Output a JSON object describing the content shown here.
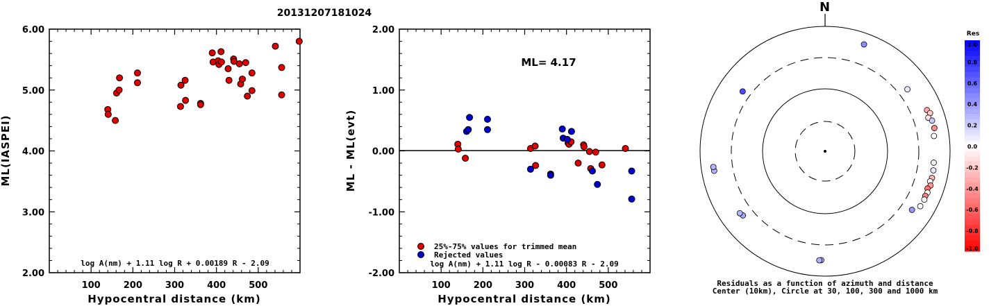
{
  "figure": {
    "title": "20131207181024"
  },
  "chart_data": [
    {
      "type": "scatter",
      "ylabel": "ML(IASPEI)",
      "xlabel": "Hypocentral distance (km)",
      "xlim": [
        0,
        600
      ],
      "ylim": [
        2.0,
        6.0
      ],
      "xticks": [
        "100",
        "200",
        "300",
        "400",
        "500"
      ],
      "yticks": [
        "2.00",
        "3.00",
        "4.00",
        "5.00",
        "6.00"
      ],
      "annotation": "log A(nm) + 1.11 log R + 0.00189 R - 2.09",
      "series": [
        {
          "color": "#dd0000",
          "points": [
            [
              140,
              4.68
            ],
            [
              141,
              4.6
            ],
            [
              158,
              4.5
            ],
            [
              161,
              4.95
            ],
            [
              167,
              5.0
            ],
            [
              168,
              5.2
            ],
            [
              211,
              5.28
            ],
            [
              211,
              5.12
            ],
            [
              315,
              5.08
            ],
            [
              314,
              4.73
            ],
            [
              325,
              5.16
            ],
            [
              326,
              4.83
            ],
            [
              362,
              4.78
            ],
            [
              362,
              4.76
            ],
            [
              390,
              5.61
            ],
            [
              392,
              5.46
            ],
            [
              404,
              5.48
            ],
            [
              406,
              5.42
            ],
            [
              411,
              5.63
            ],
            [
              412,
              5.46
            ],
            [
              428,
              5.35
            ],
            [
              430,
              5.16
            ],
            [
              441,
              5.51
            ],
            [
              442,
              5.47
            ],
            [
              455,
              5.43
            ],
            [
              458,
              5.1
            ],
            [
              462,
              5.18
            ],
            [
              470,
              5.45
            ],
            [
              474,
              4.9
            ],
            [
              485,
              5.28
            ],
            [
              485,
              4.99
            ],
            [
              541,
              5.72
            ],
            [
              556,
              5.37
            ],
            [
              556,
              4.92
            ],
            [
              598,
              5.8
            ]
          ]
        }
      ]
    },
    {
      "type": "scatter",
      "ylabel": "ML - ML(evt)",
      "xlabel": "Hypocentral distance (km)",
      "xlim": [
        0,
        600
      ],
      "ylim": [
        -2.0,
        2.0
      ],
      "xticks": [
        "100",
        "200",
        "300",
        "400",
        "500"
      ],
      "yticks": [
        "-2.00",
        "-1.00",
        "0.00",
        "1.00",
        "2.00"
      ],
      "ml_label": "ML= 4.17",
      "annotation": "log A(nm) + 1.11 log R - 0.00083 R - 2.09",
      "series": [
        {
          "name": "25%-75% values for trimmed mean",
          "color": "#dd0000",
          "points": [
            [
              140,
              0.11
            ],
            [
              141,
              0.03
            ],
            [
              158,
              -0.12
            ],
            [
              314,
              0.04
            ],
            [
              325,
              0.08
            ],
            [
              326,
              -0.24
            ],
            [
              404,
              0.13
            ],
            [
              406,
              0.11
            ],
            [
              411,
              0.15
            ],
            [
              428,
              -0.2
            ],
            [
              441,
              0.1
            ],
            [
              442,
              0.07
            ],
            [
              455,
              -0.01
            ],
            [
              458,
              -0.29
            ],
            [
              470,
              -0.02
            ],
            [
              485,
              -0.23
            ],
            [
              541,
              0.04
            ]
          ]
        },
        {
          "name": "Rejected values",
          "color": "#0000cc",
          "points": [
            [
              161,
              0.32
            ],
            [
              165,
              0.35
            ],
            [
              168,
              0.55
            ],
            [
              211,
              0.52
            ],
            [
              211,
              0.35
            ],
            [
              314,
              -0.3
            ],
            [
              362,
              -0.38
            ],
            [
              362,
              -0.4
            ],
            [
              390,
              0.36
            ],
            [
              392,
              0.21
            ],
            [
              402,
              0.19
            ],
            [
              412,
              0.32
            ],
            [
              462,
              -0.33
            ],
            [
              474,
              -0.55
            ],
            [
              556,
              -0.33
            ],
            [
              556,
              -0.79
            ]
          ]
        }
      ]
    },
    {
      "type": "polar-scatter",
      "north_label": "N",
      "caption_line1": "Residuals as a function of azimuth and distance",
      "caption_line2": "Center (10km), Circle at 30, 100, 300 and 1000 km",
      "colorbar": {
        "title": "Res",
        "ticks": [
          "1.0",
          "0.8",
          "0.6",
          "0.4",
          "0.2",
          "0.0",
          "-0.2",
          "-0.4",
          "-0.6",
          "-0.8",
          "-1.0"
        ]
      },
      "points": [
        {
          "az": 20,
          "dist": 650,
          "res": 0.45
        },
        {
          "az": 53,
          "dist": 430,
          "res": 0.1
        },
        {
          "az": 68,
          "dist": 560,
          "res": -0.35
        },
        {
          "az": 70,
          "dist": 600,
          "res": -0.2
        },
        {
          "az": 72,
          "dist": 530,
          "res": -0.1
        },
        {
          "az": 74,
          "dist": 590,
          "res": 0.2
        },
        {
          "az": 78,
          "dist": 600,
          "res": -0.45
        },
        {
          "az": 82,
          "dist": 560,
          "res": 0.0
        },
        {
          "az": 96,
          "dist": 545,
          "res": 0.05
        },
        {
          "az": 100,
          "dist": 560,
          "res": 0.1
        },
        {
          "az": 104,
          "dist": 565,
          "res": -0.3
        },
        {
          "az": 106,
          "dist": 545,
          "res": 0.0
        },
        {
          "az": 108,
          "dist": 580,
          "res": -0.4
        },
        {
          "az": 110,
          "dist": 540,
          "res": -0.55
        },
        {
          "az": 112,
          "dist": 570,
          "res": 0.0
        },
        {
          "az": 114,
          "dist": 555,
          "res": -0.5
        },
        {
          "az": 116,
          "dist": 570,
          "res": 0.0
        },
        {
          "az": 120,
          "dist": 560,
          "res": 0.0
        },
        {
          "az": 124,
          "dist": 460,
          "res": 0.4
        },
        {
          "az": 182,
          "dist": 540,
          "res": 0.3
        },
        {
          "az": 183,
          "dist": 545,
          "res": 0.3
        },
        {
          "az": 232,
          "dist": 450,
          "res": 0.35
        },
        {
          "az": 234,
          "dist": 470,
          "res": 0.3
        },
        {
          "az": 260,
          "dist": 620,
          "res": 0.3
        },
        {
          "az": 262,
          "dist": 625,
          "res": 0.3
        },
        {
          "az": 306,
          "dist": 410,
          "res": 0.7
        }
      ]
    }
  ]
}
